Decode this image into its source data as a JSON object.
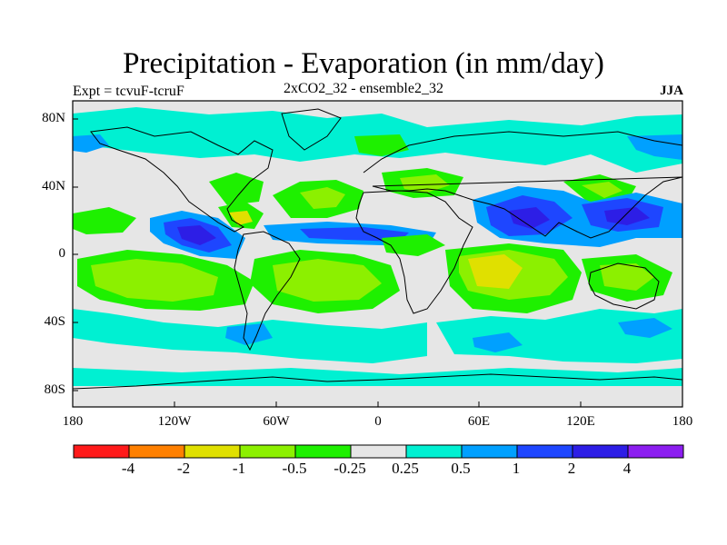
{
  "header": {
    "title": "Precipitation - Evaporation (in mm/day)",
    "experiment": "Expt = tcvuF-tcruF",
    "run": "2xCO2_32 - ensemble2_32",
    "season": "JJA"
  },
  "axes": {
    "lat_labels": [
      "80N",
      "40N",
      "0",
      "40S",
      "80S"
    ],
    "lon_labels": [
      "180",
      "120W",
      "60W",
      "0",
      "60E",
      "120E",
      "180"
    ]
  },
  "legend": {
    "colors": [
      "#ff1a1a",
      "#ff8000",
      "#e0e000",
      "#8cf000",
      "#1ef000",
      "#e6e6e6",
      "#00f0d2",
      "#00a0ff",
      "#1e46ff",
      "#2d1ee6",
      "#8c1ef0"
    ],
    "labels": [
      "-4",
      "-2",
      "-1",
      "-0.5",
      "-0.25",
      "0.25",
      "0.5",
      "1",
      "2",
      "4"
    ]
  },
  "field_colors": {
    "neutral": "#e6e6e6",
    "wet_light": "#00f0d2",
    "wet_mid": "#00a0ff",
    "wet_strong": "#1e46ff",
    "wet_max": "#2d1ee6",
    "dry_light": "#1ef000",
    "dry_mid": "#8cf000",
    "dry_strong": "#e0e000"
  }
}
